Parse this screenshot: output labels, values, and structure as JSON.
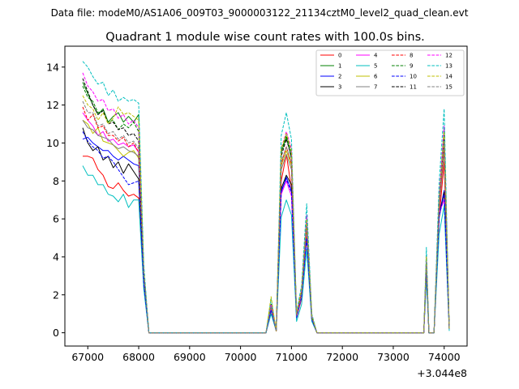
{
  "chart_data": {
    "type": "line",
    "suptitle": "Data file: modeM0/AS1A06_009T03_9000003122_21134cztM0_level2_quad_clean.evt",
    "title": "Quadrant 1 module wise count rates with 100.0s bins.",
    "xlabel": "",
    "ylabel": "",
    "x_offset_label": "+3.044e8",
    "xlim": [
      66550,
      74450
    ],
    "ylim": [
      -0.7,
      15.1
    ],
    "x_ticks": [
      67000,
      68000,
      69000,
      70000,
      71000,
      72000,
      73000,
      74000
    ],
    "x_tick_labels": [
      "67000",
      "68000",
      "69000",
      "70000",
      "71000",
      "72000",
      "73000",
      "74000"
    ],
    "y_ticks": [
      0,
      2,
      4,
      6,
      8,
      10,
      12,
      14
    ],
    "y_tick_labels": [
      "0",
      "2",
      "4",
      "6",
      "8",
      "10",
      "12",
      "14"
    ],
    "legend_location": "upper right",
    "x": [
      66900,
      67000,
      67100,
      67200,
      67300,
      67400,
      67500,
      67600,
      67700,
      67800,
      67900,
      68000,
      68100,
      68200,
      68300,
      70400,
      70500,
      70600,
      70700,
      70800,
      70900,
      71000,
      71100,
      71200,
      71300,
      71400,
      71500,
      73500,
      73600,
      73650,
      73700,
      73800,
      73900,
      74000,
      74100
    ],
    "series": [
      {
        "name": "0",
        "color": "#ff0000",
        "dash": "solid",
        "values": [
          9.3,
          9.3,
          9.2,
          8.6,
          8.3,
          7.7,
          7.6,
          7.9,
          7.5,
          7.2,
          7.3,
          7.1,
          2.5,
          0,
          0,
          0,
          0,
          1.2,
          0.1,
          8.0,
          9.4,
          7.6,
          0.8,
          1.8,
          5.1,
          0.7,
          0,
          0,
          0,
          3.3,
          0,
          0,
          6.0,
          9.0,
          0.2
        ]
      },
      {
        "name": "1",
        "color": "#008000",
        "dash": "solid",
        "values": [
          13.2,
          12.6,
          12.0,
          11.5,
          11.8,
          11.1,
          11.4,
          11.6,
          11.1,
          11.4,
          11.1,
          11.5,
          3.2,
          0,
          0,
          0,
          0,
          1.5,
          0.1,
          9.5,
          10.3,
          9.2,
          1.0,
          2.1,
          5.9,
          0.8,
          0,
          0,
          0,
          3.9,
          0,
          0,
          7.0,
          10.5,
          0.2
        ]
      },
      {
        "name": "2",
        "color": "#0000ff",
        "dash": "solid",
        "values": [
          10.2,
          10.3,
          10.0,
          9.8,
          9.6,
          9.6,
          9.3,
          9.1,
          9.3,
          9.1,
          8.9,
          8.8,
          2.8,
          0,
          0,
          0,
          0,
          1.3,
          0.1,
          7.4,
          8.2,
          7.5,
          0.8,
          1.9,
          5.2,
          0.7,
          0,
          0,
          0,
          3.4,
          0,
          0,
          6.2,
          7.5,
          0.2
        ]
      },
      {
        "name": "3",
        "color": "#000000",
        "dash": "solid",
        "values": [
          10.8,
          10.0,
          9.6,
          9.8,
          9.1,
          9.3,
          8.7,
          9.0,
          8.4,
          8.9,
          8.5,
          8.1,
          2.6,
          0,
          0,
          0,
          0,
          1.2,
          0.1,
          7.6,
          8.3,
          7.8,
          0.8,
          1.9,
          5.1,
          0.7,
          0,
          0,
          0,
          3.3,
          0,
          0,
          6.1,
          7.4,
          0.2
        ]
      },
      {
        "name": "4",
        "color": "#ff00ff",
        "dash": "solid",
        "values": [
          11.6,
          11.2,
          10.9,
          10.4,
          10.6,
          10.1,
          10.2,
          9.9,
          10.0,
          9.8,
          9.9,
          9.5,
          3.0,
          0,
          0,
          0,
          0,
          1.3,
          0.1,
          7.3,
          8.0,
          7.2,
          0.8,
          1.9,
          5.3,
          0.7,
          0,
          0,
          0,
          3.4,
          0,
          0,
          6.3,
          7.0,
          0.2
        ]
      },
      {
        "name": "5",
        "color": "#00bfbf",
        "dash": "solid",
        "values": [
          8.8,
          8.3,
          8.3,
          7.8,
          7.8,
          7.3,
          7.2,
          6.9,
          7.3,
          6.6,
          7.0,
          7.0,
          2.3,
          0,
          0,
          0,
          0,
          1.0,
          0.1,
          6.1,
          7.0,
          6.2,
          0.6,
          1.5,
          4.4,
          0.6,
          0,
          0,
          0,
          2.8,
          0,
          0,
          5.2,
          6.7,
          0.1
        ]
      },
      {
        "name": "6",
        "color": "#bfbf00",
        "dash": "solid",
        "values": [
          11.2,
          11.0,
          10.5,
          10.8,
          10.1,
          10.0,
          9.9,
          9.6,
          9.3,
          9.5,
          9.6,
          9.2,
          3.0,
          0,
          0,
          0,
          0,
          1.4,
          0.1,
          8.8,
          9.6,
          8.8,
          0.9,
          2.0,
          5.6,
          0.8,
          0,
          0,
          0,
          3.6,
          0,
          0,
          6.6,
          9.8,
          0.2
        ]
      },
      {
        "name": "7",
        "color": "#808080",
        "dash": "solid",
        "values": [
          11.2,
          10.8,
          10.7,
          10.4,
          10.3,
          10.2,
          9.9,
          9.7,
          9.8,
          9.6,
          9.5,
          9.3,
          3.0,
          0,
          0,
          0,
          0,
          1.3,
          0.1,
          8.6,
          9.4,
          8.6,
          0.9,
          2.0,
          5.5,
          0.8,
          0,
          0,
          0,
          3.5,
          0,
          0,
          6.5,
          9.6,
          0.2
        ]
      },
      {
        "name": "8",
        "color": "#ff0000",
        "dash": "dashed",
        "values": [
          11.9,
          11.2,
          11.5,
          10.8,
          10.9,
          10.4,
          10.4,
          10.1,
          10.3,
          9.8,
          10.0,
          9.5,
          3.1,
          0,
          0,
          0,
          0,
          1.4,
          0.1,
          8.9,
          9.8,
          8.9,
          0.9,
          2.1,
          5.7,
          0.8,
          0,
          0,
          0,
          3.7,
          0,
          0,
          6.7,
          9.9,
          0.2
        ]
      },
      {
        "name": "9",
        "color": "#008000",
        "dash": "dashed",
        "values": [
          13.0,
          12.4,
          12.2,
          11.6,
          11.7,
          11.1,
          11.2,
          10.7,
          11.0,
          10.8,
          11.1,
          10.6,
          3.3,
          0,
          0,
          0,
          0,
          1.5,
          0.1,
          9.6,
          10.4,
          9.5,
          1.0,
          2.2,
          6.1,
          0.9,
          0,
          0,
          0,
          4.0,
          0,
          0,
          7.1,
          10.8,
          0.2
        ]
      },
      {
        "name": "10",
        "color": "#0000ff",
        "dash": "dashed",
        "values": [
          10.6,
          10.1,
          9.8,
          9.6,
          9.2,
          9.3,
          9.0,
          8.6,
          8.2,
          7.8,
          7.9,
          8.0,
          2.6,
          0,
          0,
          0,
          0,
          1.2,
          0.1,
          7.5,
          8.1,
          7.4,
          0.8,
          1.9,
          5.0,
          0.7,
          0,
          0,
          0,
          3.3,
          0,
          0,
          6.1,
          7.3,
          0.2
        ]
      },
      {
        "name": "11",
        "color": "#000000",
        "dash": "dashed",
        "values": [
          13.4,
          12.7,
          12.0,
          11.5,
          11.7,
          11.0,
          11.1,
          10.7,
          10.8,
          10.4,
          10.5,
          10.1,
          3.2,
          0,
          0,
          0,
          0,
          1.5,
          0.1,
          9.3,
          10.2,
          9.3,
          1.0,
          2.2,
          6.0,
          0.8,
          0,
          0,
          0,
          3.9,
          0,
          0,
          7.0,
          10.4,
          0.2
        ]
      },
      {
        "name": "12",
        "color": "#ff00ff",
        "dash": "dashed",
        "values": [
          13.7,
          13.0,
          12.7,
          12.2,
          12.3,
          11.7,
          11.8,
          11.3,
          11.5,
          11.0,
          11.2,
          10.8,
          3.4,
          0,
          0,
          0,
          0,
          1.5,
          0.1,
          9.7,
          10.6,
          9.7,
          1.0,
          2.3,
          6.2,
          0.9,
          0,
          0,
          0,
          4.1,
          0,
          0,
          7.2,
          10.9,
          0.2
        ]
      },
      {
        "name": "13",
        "color": "#00bfbf",
        "dash": "dashed",
        "values": [
          14.3,
          14.0,
          13.5,
          13.1,
          13.2,
          12.5,
          12.8,
          12.2,
          12.4,
          12.2,
          12.3,
          12.1,
          3.6,
          0,
          0,
          0,
          0,
          1.8,
          0.1,
          10.4,
          11.6,
          10.2,
          1.1,
          2.5,
          6.8,
          1.0,
          0,
          0,
          0,
          4.5,
          0,
          0,
          7.9,
          11.8,
          0.2
        ]
      },
      {
        "name": "14",
        "color": "#bfbf00",
        "dash": "dashed",
        "values": [
          12.5,
          12.0,
          11.8,
          11.2,
          11.6,
          11.0,
          11.3,
          11.9,
          11.5,
          11.6,
          11.4,
          11.2,
          3.3,
          0,
          0,
          0,
          0,
          1.9,
          0.1,
          9.7,
          10.5,
          9.6,
          1.0,
          2.3,
          6.0,
          0.9,
          0,
          0,
          0,
          4.0,
          0,
          0,
          7.0,
          10.6,
          0.2
        ]
      },
      {
        "name": "15",
        "color": "#808080",
        "dash": "dashed",
        "values": [
          12.2,
          11.6,
          11.6,
          10.9,
          11.0,
          10.5,
          10.6,
          10.2,
          10.4,
          10.0,
          10.1,
          9.7,
          3.1,
          0,
          0,
          0,
          0,
          1.4,
          0.1,
          9.0,
          9.8,
          9.0,
          0.9,
          2.1,
          5.8,
          0.8,
          0,
          0,
          0,
          3.8,
          0,
          0,
          6.8,
          10.1,
          0.2
        ]
      }
    ]
  }
}
